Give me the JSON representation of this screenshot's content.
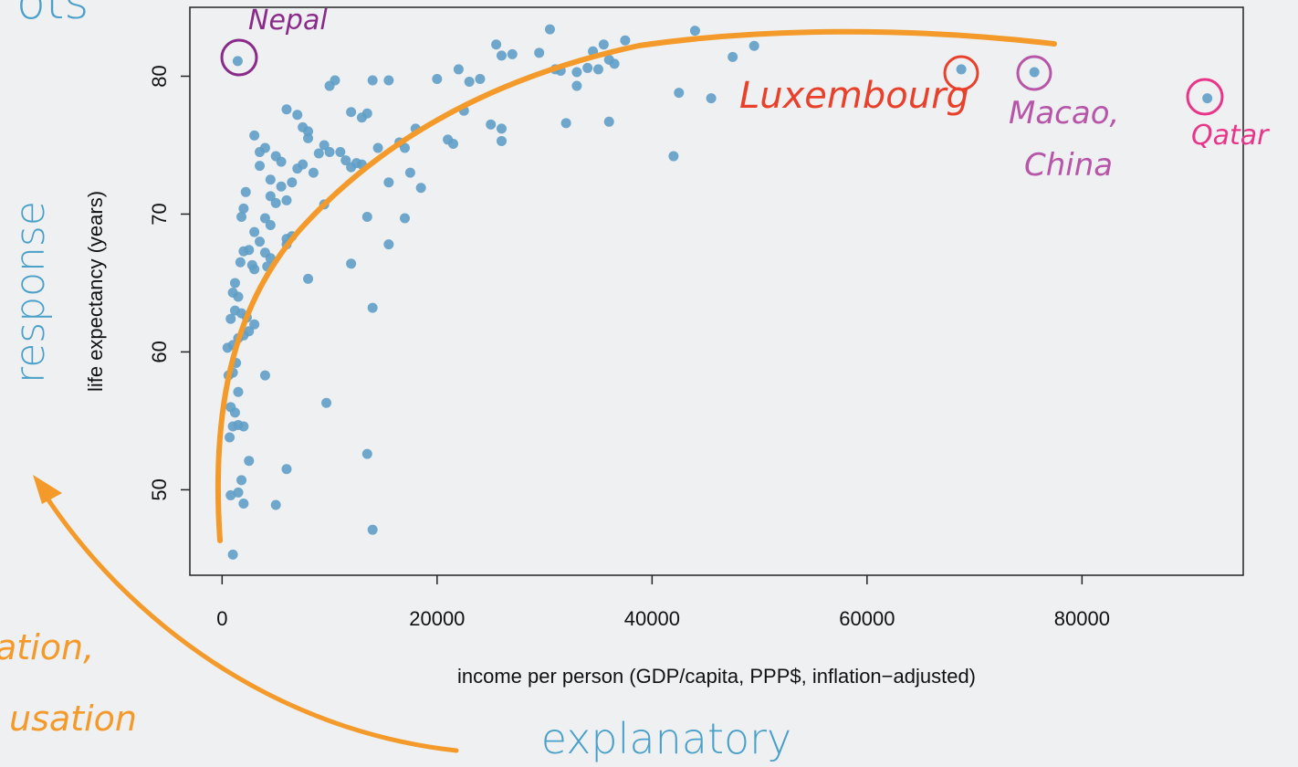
{
  "chart_data": {
    "type": "scatter",
    "xlabel": "income per person (GDP/capita, PPP$, inflation−adjusted)",
    "ylabel": "life expectancy (years)",
    "xlim": [
      -3000,
      95000
    ],
    "ylim": [
      43.8,
      85
    ],
    "xticks": [
      0,
      20000,
      40000,
      60000,
      80000
    ],
    "yticks": [
      50,
      60,
      70,
      80
    ],
    "color": "#5f9ec6",
    "x": [
      1450,
      68770,
      75570,
      91660,
      1000,
      800,
      1500,
      1800,
      2000,
      700,
      1000,
      1500,
      2000,
      800,
      1200,
      1500,
      600,
      1000,
      1300,
      500,
      1000,
      1500,
      2000,
      2500,
      800,
      1200,
      1800,
      2300,
      3000,
      1000,
      1500,
      1700,
      2000,
      2500,
      1800,
      2000,
      2200,
      1200,
      3000,
      3000,
      3500,
      4000,
      3500,
      4500,
      5000,
      5500,
      4500,
      5000,
      5500,
      6000,
      6500,
      4000,
      4500,
      3500,
      4000,
      4500,
      4200,
      3000,
      2800,
      6000,
      6500,
      6000,
      6000,
      7000,
      7500,
      8000,
      8000,
      7000,
      7500,
      8500,
      9000,
      9500,
      10000,
      9500,
      8000,
      4000,
      2500,
      5000,
      6000,
      9700,
      13500,
      14000,
      14000,
      10000,
      10500,
      12000,
      13000,
      13000,
      12000,
      11000,
      11500,
      12500,
      13500,
      14000,
      15500,
      13500,
      15500,
      15500,
      16500,
      17000,
      17500,
      17000,
      18500,
      18000,
      14500,
      12000,
      20000,
      21000,
      21500,
      22000,
      22500,
      23000,
      24000,
      25000,
      26000,
      26000,
      25500,
      26000,
      27000,
      29500,
      30500,
      31000,
      32000,
      31500,
      33000,
      33000,
      34000,
      34500,
      35500,
      36000,
      35000,
      36000,
      36500,
      37500,
      42000,
      42500,
      44000,
      45500,
      47500,
      49500
    ],
    "values": [
      81.1,
      80.5,
      80.3,
      78.4,
      45.3,
      49.6,
      49.8,
      50.7,
      49,
      53.8,
      54.6,
      54.7,
      54.6,
      56,
      55.6,
      57.1,
      58.3,
      58.5,
      59.2,
      60.3,
      60.5,
      61,
      61.2,
      61.5,
      62.4,
      63,
      62.8,
      62.5,
      62,
      64.3,
      64,
      66.5,
      67.3,
      67.4,
      69.8,
      70.4,
      71.6,
      65,
      68.7,
      75.7,
      74.5,
      74.8,
      73.5,
      72.5,
      74.2,
      73.8,
      71.3,
      70.8,
      72,
      71,
      72.3,
      69.7,
      69.2,
      68,
      67.2,
      66.8,
      66.2,
      66,
      66.3,
      68.2,
      68.4,
      67.8,
      77.6,
      77.2,
      76.3,
      76,
      75.5,
      73.3,
      73.6,
      73,
      74.4,
      75,
      74.5,
      70.7,
      65.3,
      58.3,
      52.1,
      48.9,
      51.5,
      56.3,
      52.6,
      47.1,
      63.2,
      79.3,
      79.7,
      77.4,
      77,
      73.6,
      73.4,
      74.5,
      73.9,
      73.7,
      77.3,
      79.7,
      79.7,
      69.8,
      67.8,
      72.3,
      75.2,
      74.8,
      73,
      69.7,
      71.9,
      76.2,
      74.8,
      66.4,
      79.8,
      75.4,
      75.1,
      80.5,
      77.5,
      79.6,
      79.8,
      76.5,
      76.2,
      75.3,
      82.3,
      81.5,
      81.6,
      81.7,
      83.4,
      80.5,
      76.6,
      80.4,
      80.3,
      79.3,
      80.6,
      81.8,
      82.3,
      81.2,
      80.5,
      76.7,
      80.9,
      82.6,
      74.2,
      78.8,
      83.3,
      78.4,
      81.4,
      82.2
    ]
  },
  "annotations": {
    "nepal": "Nepal",
    "luxembourg": "Luxembourg",
    "macao": [
      "Macao,",
      "China"
    ],
    "qatar": "Qatar"
  },
  "slide": {
    "title_fragment": "ots",
    "response": "response",
    "explanatory": "explanatory",
    "note": [
      "ation,",
      "usation"
    ]
  }
}
